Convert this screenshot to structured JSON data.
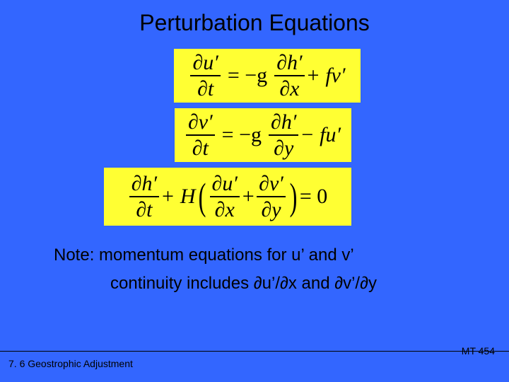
{
  "slide": {
    "title": "Perturbation Equations",
    "background_color": "#3366ff",
    "equation_bg": "#ffff33",
    "text_color": "#000000",
    "equations": {
      "eq1": {
        "lhs_num": "∂u′",
        "lhs_den": "∂t",
        "rhs_sign": "= −g",
        "rhs_num": "∂h′",
        "rhs_den": "∂x",
        "tail": " + fv′"
      },
      "eq2": {
        "lhs_num": "∂v′",
        "lhs_den": "∂t",
        "rhs_sign": "= −g",
        "rhs_num": "∂h′",
        "rhs_den": "∂y",
        "tail": " − fu′"
      },
      "eq3": {
        "t1_num": "∂h′",
        "t1_den": "∂t",
        "plus1": " + H",
        "lp": "(",
        "t2_num": "∂u′",
        "t2_den": "∂x",
        "plus2": " + ",
        "t3_num": "∂v′",
        "t3_den": "∂y",
        "rp": ")",
        "eq0": " = 0"
      }
    },
    "note_line1": "Note:  momentum equations for u’ and v’",
    "note_line2": "continuity includes ∂u’/∂x and ∂v’/∂y",
    "footer_left": "7. 6 Geostrophic Adjustment",
    "footer_right": "MT 454"
  }
}
